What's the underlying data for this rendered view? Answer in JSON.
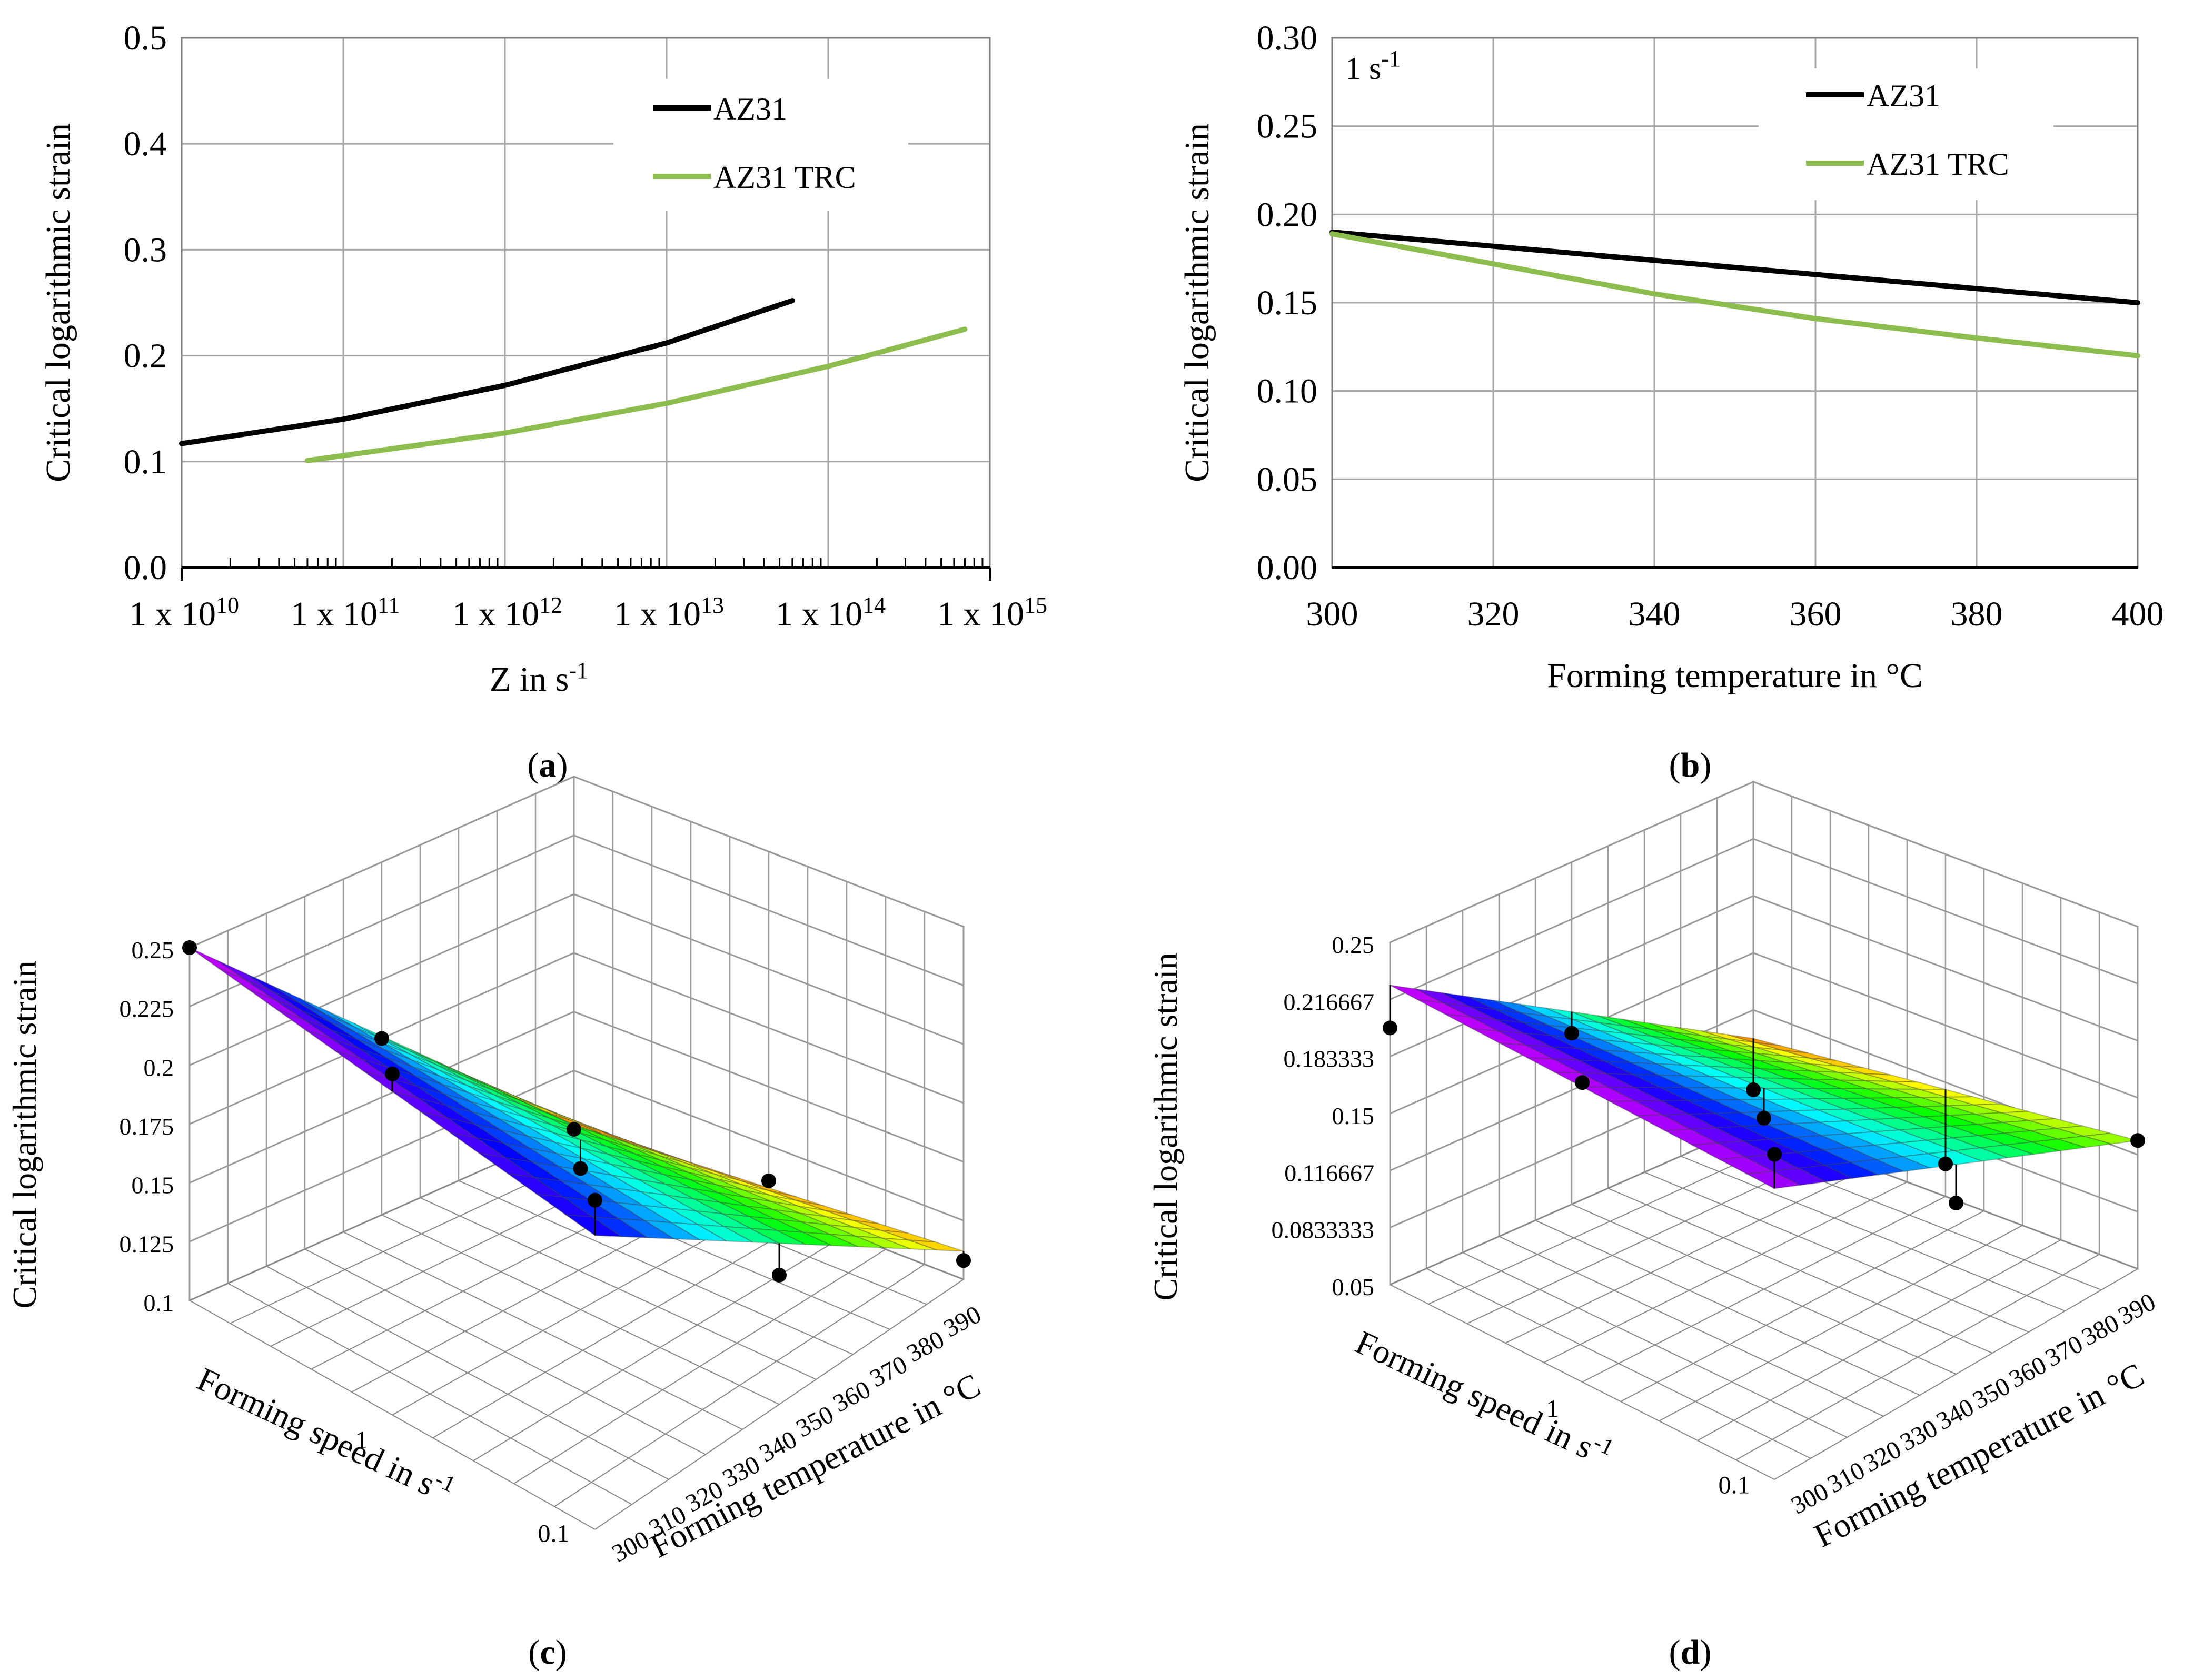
{
  "colors": {
    "az31": "#000000",
    "az31_trc": "#8DBD4F",
    "grid": "#a6a6a6",
    "axis": "#7f7f7f"
  },
  "chart_data": [
    {
      "panel": "a",
      "type": "line",
      "title": "",
      "panel_label": {
        "open": "(",
        "letter": "a",
        "close": ")"
      },
      "xscale": "log",
      "xlabel": {
        "main": "Z in s",
        "sup": "-1"
      },
      "ylabel": "Critical logarithmic strain",
      "xlim": [
        10000000000.0,
        1000000000000000.0
      ],
      "ylim": [
        0,
        0.5
      ],
      "x_ticks": [
        {
          "value": 10000000000.0,
          "base": "1 x 10",
          "exp": "10"
        },
        {
          "value": 100000000000.0,
          "base": "1 x 10",
          "exp": "11"
        },
        {
          "value": 1000000000000.0,
          "base": "1 x 10",
          "exp": "12"
        },
        {
          "value": 10000000000000.0,
          "base": "1 x 10",
          "exp": "13"
        },
        {
          "value": 100000000000000.0,
          "base": "1 x 10",
          "exp": "14"
        },
        {
          "value": 1000000000000000.0,
          "base": "1 x 10",
          "exp": "15"
        }
      ],
      "y_ticks": [
        {
          "value": 0.0,
          "label": "0.0"
        },
        {
          "value": 0.1,
          "label": "0.1"
        },
        {
          "value": 0.2,
          "label": "0.2"
        },
        {
          "value": 0.3,
          "label": "0.3"
        },
        {
          "value": 0.4,
          "label": "0.4"
        },
        {
          "value": 0.5,
          "label": "0.5"
        }
      ],
      "grid": true,
      "legend_position": "top-right",
      "series": [
        {
          "name": "AZ31",
          "color": "#000000",
          "x": [
            10000000000.0,
            100000000000.0,
            1000000000000.0,
            10000000000000.0,
            60000000000000.0
          ],
          "y": [
            0.117,
            0.14,
            0.172,
            0.212,
            0.252
          ]
        },
        {
          "name": "AZ31 TRC",
          "color": "#8DBD4F",
          "x": [
            60000000000.0,
            1000000000000.0,
            10000000000000.0,
            100000000000000.0,
            700000000000000.0
          ],
          "y": [
            0.101,
            0.127,
            0.155,
            0.19,
            0.225
          ]
        }
      ]
    },
    {
      "panel": "b",
      "type": "line",
      "title": "",
      "panel_label": {
        "open": "(",
        "letter": "b",
        "close": ")"
      },
      "annotation": {
        "main": "1 s",
        "sup": "-1"
      },
      "xlabel": "Forming temperature in °C",
      "ylabel": "Critical logarithmic strain",
      "xlim": [
        300,
        400
      ],
      "ylim": [
        0,
        0.3
      ],
      "x_ticks": [
        {
          "value": 300,
          "label": "300"
        },
        {
          "value": 320,
          "label": "320"
        },
        {
          "value": 340,
          "label": "340"
        },
        {
          "value": 360,
          "label": "360"
        },
        {
          "value": 380,
          "label": "380"
        },
        {
          "value": 400,
          "label": "400"
        }
      ],
      "y_ticks": [
        {
          "value": 0.0,
          "label": "0.00"
        },
        {
          "value": 0.05,
          "label": "0.05"
        },
        {
          "value": 0.1,
          "label": "0.10"
        },
        {
          "value": 0.15,
          "label": "0.15"
        },
        {
          "value": 0.2,
          "label": "0.20"
        },
        {
          "value": 0.25,
          "label": "0.25"
        },
        {
          "value": 0.3,
          "label": "0.30"
        }
      ],
      "grid": true,
      "legend_position": "top-right",
      "series": [
        {
          "name": "AZ31",
          "color": "#000000",
          "x": [
            300,
            320,
            340,
            360,
            380,
            400
          ],
          "y": [
            0.19,
            0.182,
            0.174,
            0.166,
            0.158,
            0.15
          ]
        },
        {
          "name": "AZ31 TRC",
          "color": "#8DBD4F",
          "x": [
            300,
            320,
            340,
            360,
            380,
            400
          ],
          "y": [
            0.189,
            0.172,
            0.155,
            0.141,
            0.13,
            0.12
          ]
        }
      ]
    },
    {
      "panel": "c",
      "type": "surface3d",
      "title": "",
      "panel_label": {
        "open": "(",
        "letter": "c",
        "close": ")"
      },
      "zlabel": "Critical logarithmic strain",
      "xlabel": "Forming temperature in °C",
      "ylabel": {
        "main": "Forming speed in s",
        "sup": "-1"
      },
      "z_ticks": [
        "0.1",
        "0.125",
        "0.15",
        "0.175",
        "0.2",
        "0.225",
        "0.25"
      ],
      "zlim": [
        0.1,
        0.25
      ],
      "temp_ticks": [
        "300",
        "310",
        "320",
        "330",
        "340",
        "350",
        "360",
        "370",
        "380",
        "390"
      ],
      "speed_ticks": [
        "0.1",
        "1"
      ],
      "surface_corners": {
        "T300_speed_max": 0.25,
        "T400_speed_max": 0.225,
        "T300_speed_min": 0.102,
        "T400_speed_min": 0.112
      },
      "data_points": [
        {
          "temp": 300,
          "speed": 10,
          "strain": 0.25
        },
        {
          "temp": 300,
          "speed": 1,
          "strain": 0.245
        },
        {
          "temp": 300,
          "speed": 0.1,
          "strain": 0.24
        },
        {
          "temp": 350,
          "speed": 1,
          "strain": 0.16
        },
        {
          "temp": 350,
          "speed": 0.1,
          "strain": 0.155
        },
        {
          "temp": 350,
          "speed": 10,
          "strain": 0.175
        },
        {
          "temp": 400,
          "speed": 10,
          "strain": 0.1
        },
        {
          "temp": 400,
          "speed": 1,
          "strain": 0.11
        },
        {
          "temp": 400,
          "speed": 0.1,
          "strain": 0.108
        }
      ]
    },
    {
      "panel": "d",
      "type": "surface3d",
      "title": "",
      "panel_label": {
        "open": "(",
        "letter": "d",
        "close": ")"
      },
      "zlabel": "Critical logarithmic strain",
      "xlabel": "Forming temperature in °C",
      "ylabel": {
        "main": "Forming speed in s",
        "sup": "-1"
      },
      "z_ticks": [
        "0.05",
        "0.0833333",
        "0.116667",
        "0.15",
        "0.183333",
        "0.216667",
        "0.25"
      ],
      "zlim": [
        0.05,
        0.25
      ],
      "temp_ticks": [
        "300",
        "310",
        "320",
        "330",
        "340",
        "350",
        "360",
        "370",
        "380",
        "390"
      ],
      "speed_ticks": [
        "0.1",
        "1"
      ],
      "surface_corners": {
        "T300_speed_max": 0.225,
        "T400_speed_max": 0.22,
        "T300_speed_min": 0.1,
        "T400_speed_min": 0.125
      },
      "data_points": [
        {
          "temp": 300,
          "speed": 10,
          "strain": 0.2
        },
        {
          "temp": 300,
          "speed": 1,
          "strain": 0.225
        },
        {
          "temp": 300,
          "speed": 0.1,
          "strain": 0.24
        },
        {
          "temp": 350,
          "speed": 1,
          "strain": 0.15
        },
        {
          "temp": 350,
          "speed": 0.1,
          "strain": 0.15
        },
        {
          "temp": 350,
          "speed": 10,
          "strain": 0.15
        },
        {
          "temp": 400,
          "speed": 10,
          "strain": 0.07
        },
        {
          "temp": 400,
          "speed": 1,
          "strain": 0.069
        },
        {
          "temp": 400,
          "speed": 0.1,
          "strain": 0.125
        }
      ]
    }
  ]
}
